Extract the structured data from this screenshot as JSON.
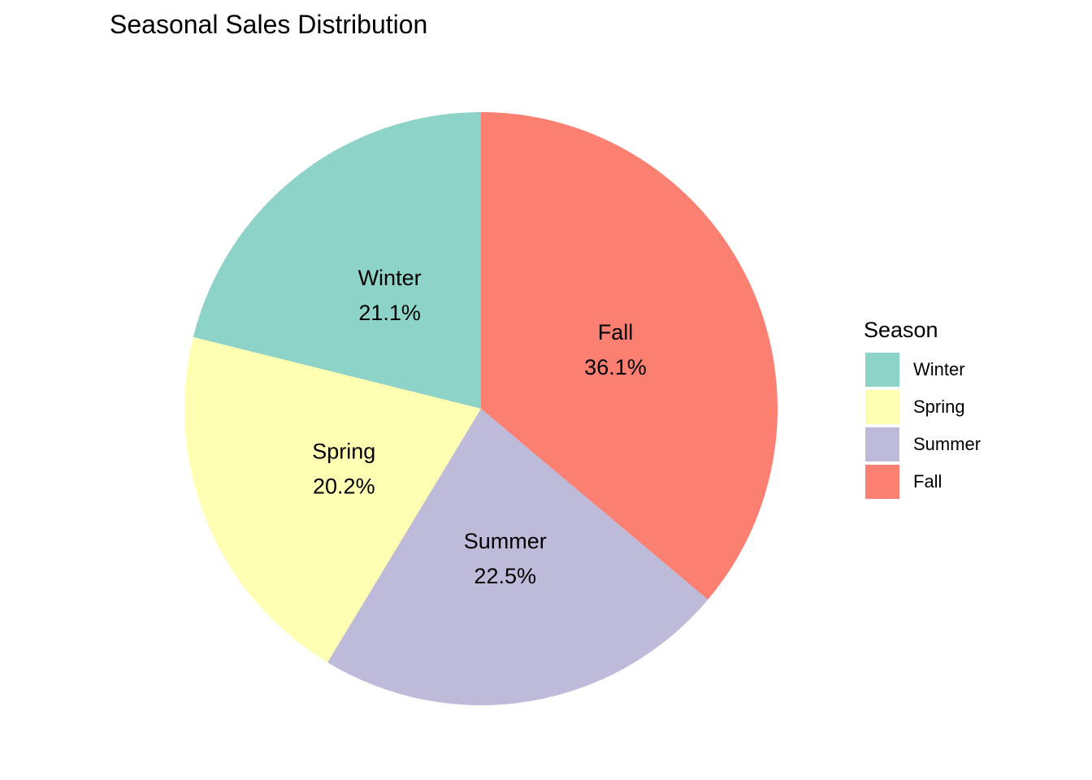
{
  "chart_data": {
    "type": "pie",
    "title": "Seasonal Sales Distribution",
    "legend_title": "Season",
    "legend_position": "right",
    "slices": [
      {
        "label": "Winter",
        "percent": 21.1,
        "percent_label": "21.1%",
        "color": "#8dd3c7"
      },
      {
        "label": "Spring",
        "percent": 20.2,
        "percent_label": "20.2%",
        "color": "#ffffb3"
      },
      {
        "label": "Summer",
        "percent": 22.5,
        "percent_label": "22.5%",
        "color": "#bebada"
      },
      {
        "label": "Fall",
        "percent": 36.1,
        "percent_label": "36.1%",
        "color": "#fb8072"
      }
    ]
  }
}
